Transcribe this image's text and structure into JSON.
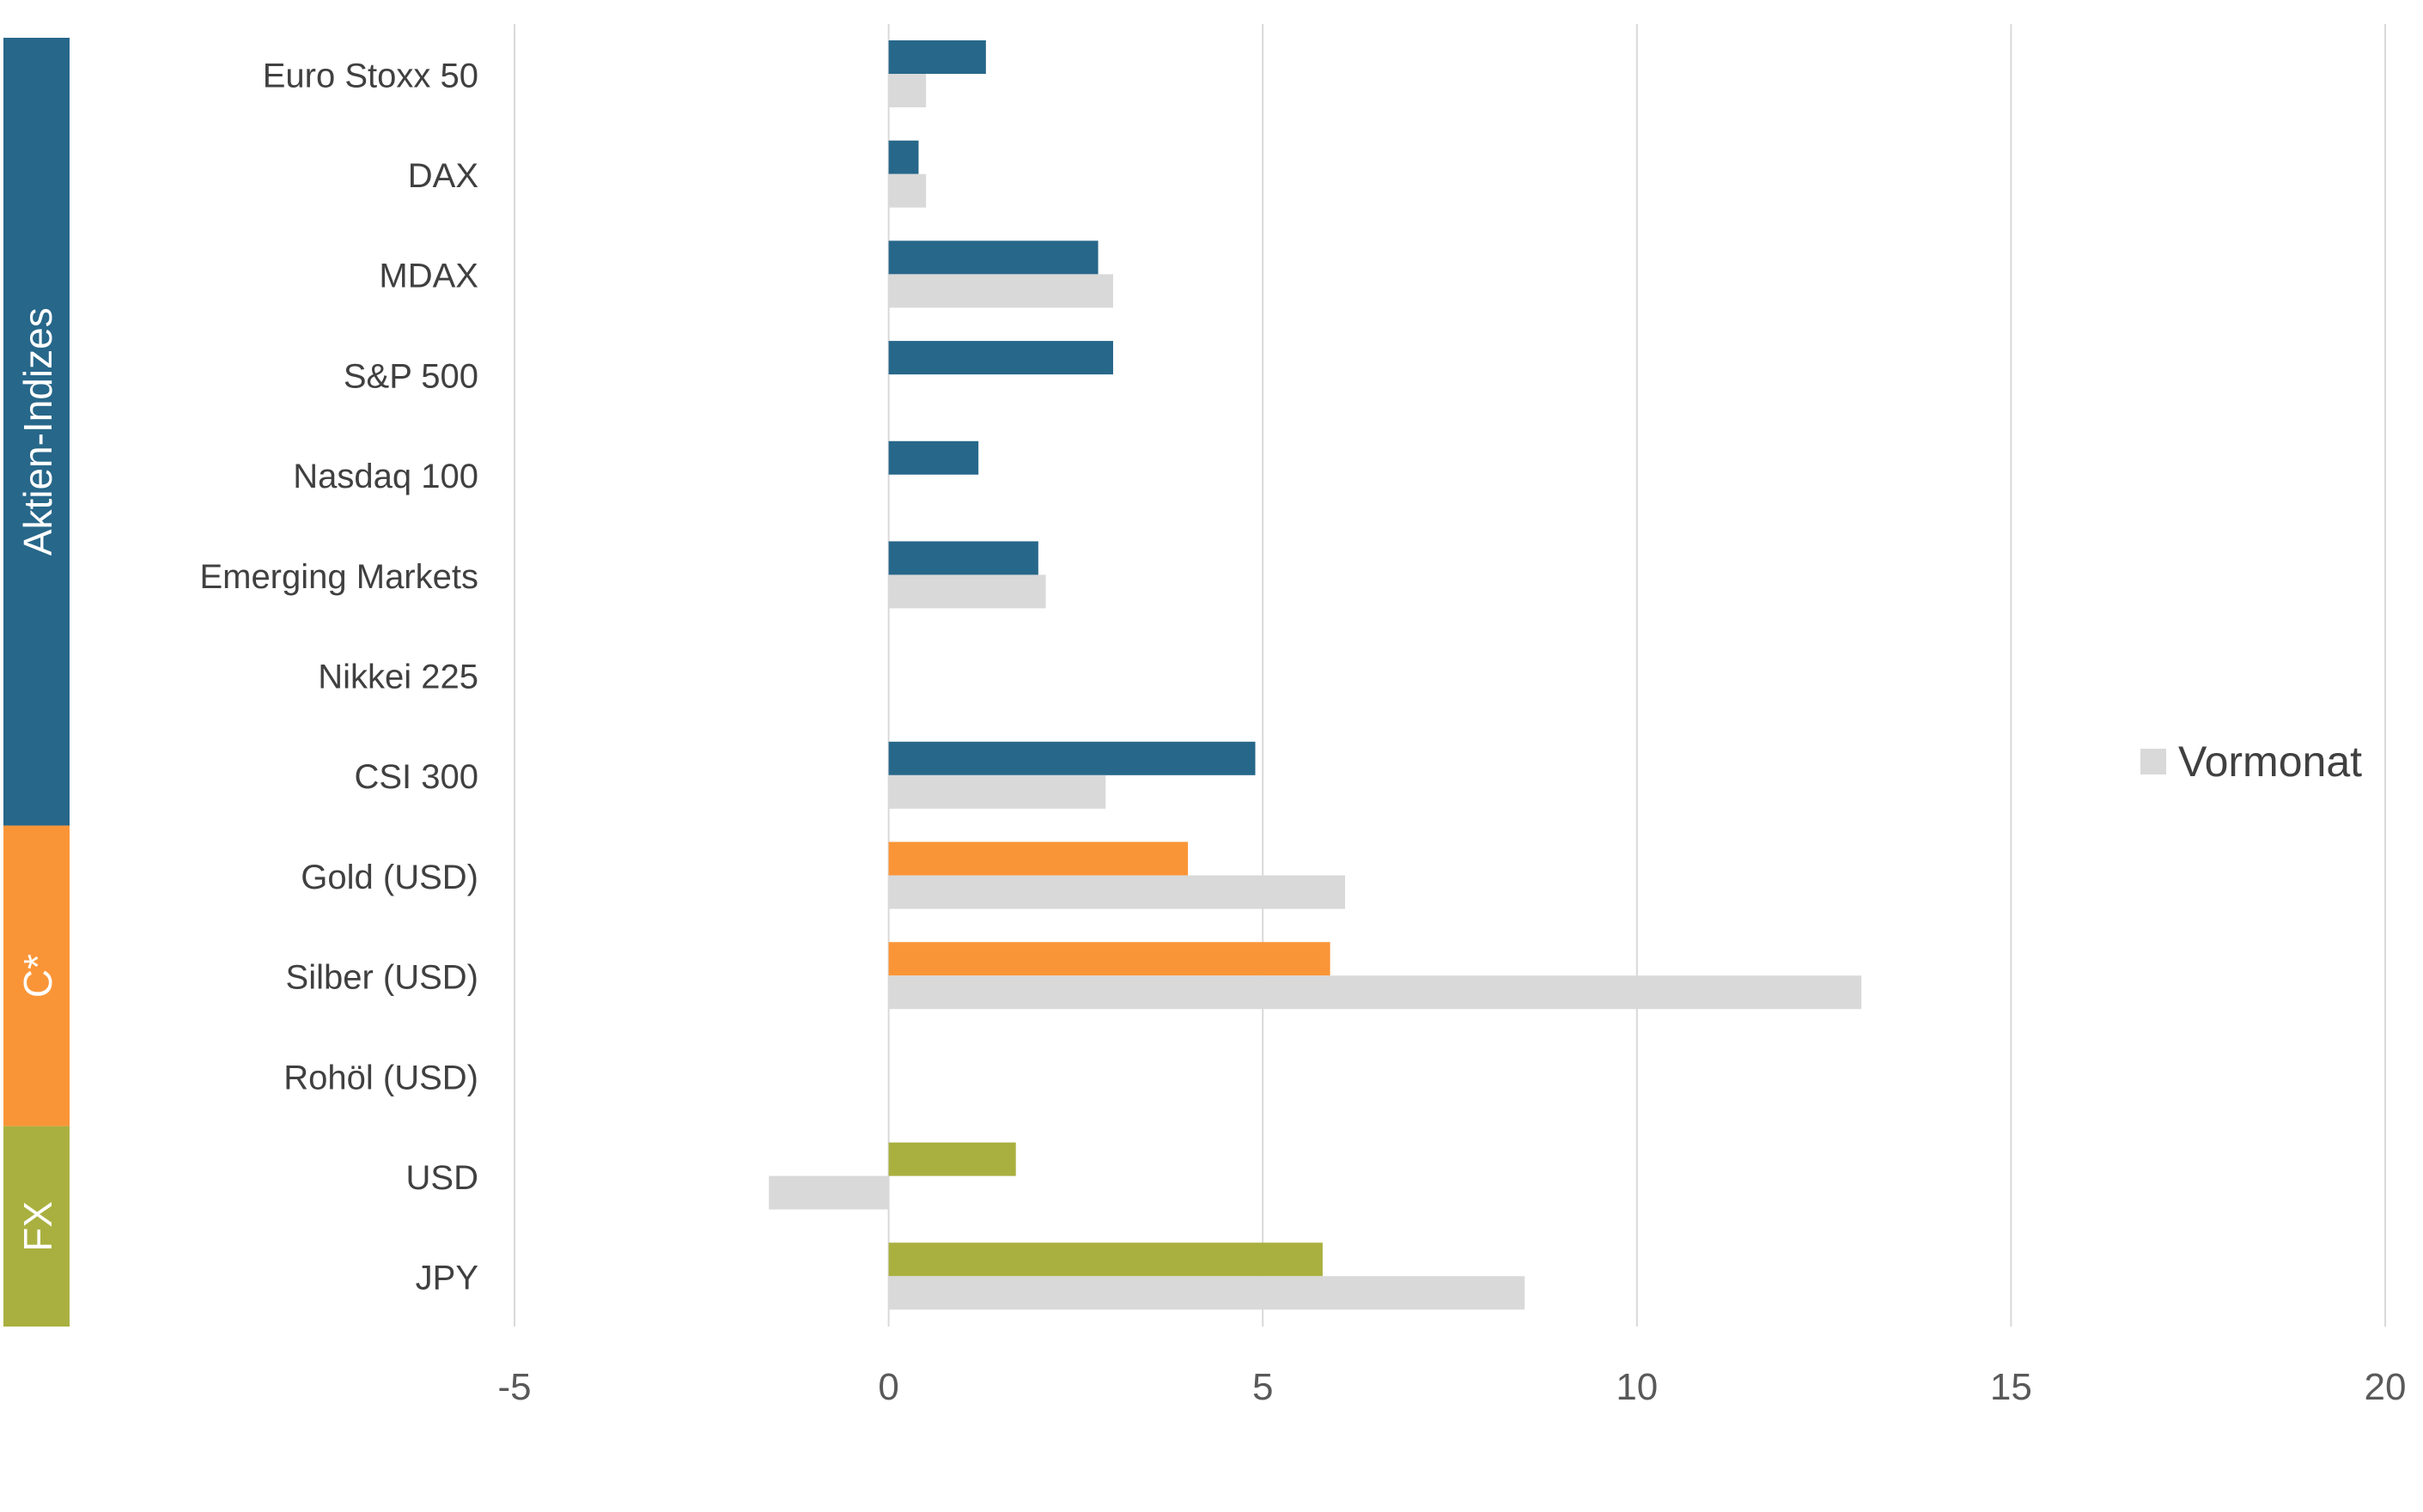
{
  "chart_data": {
    "type": "bar",
    "orientation": "horizontal",
    "categories": [
      "Euro Stoxx 50",
      "DAX",
      "MDAX",
      "S&P 500",
      "Nasdaq 100",
      "Emerging Markets",
      "Nikkei 225",
      "CSI 300",
      "Gold (USD)",
      "Silber (USD)",
      "Rohöl (USD)",
      "USD",
      "JPY"
    ],
    "groups": [
      {
        "label": "Aktien-Indizes",
        "from": 0,
        "to": 7,
        "color": "#27678a"
      },
      {
        "label": "C*",
        "from": 8,
        "to": 10,
        "color": "#fa9537"
      },
      {
        "label": "FX",
        "from": 11,
        "to": 12,
        "color": "#a9b03f"
      }
    ],
    "series": [
      {
        "values": [
          1.3,
          0.4,
          2.8,
          3.0,
          1.2,
          2.0,
          null,
          4.9,
          4.0,
          5.9,
          null,
          1.7,
          5.8
        ],
        "colors_by_group": [
          "#27678a",
          "#fa9537",
          "#a9b03f"
        ]
      },
      {
        "name": "Vormonat",
        "values": [
          0.5,
          0.5,
          3.0,
          null,
          null,
          2.1,
          null,
          2.9,
          6.1,
          13.0,
          null,
          -1.6,
          8.5
        ],
        "color": "#d9d9d9"
      }
    ],
    "xlim": [
      -5,
      20
    ],
    "xticks": [
      "-5",
      "0",
      "5",
      "10",
      "15",
      "20"
    ],
    "xtick_values": [
      -5,
      0,
      5,
      10,
      15,
      20
    ],
    "xlabel": "",
    "ylabel": "",
    "title": "",
    "grid": "vertical",
    "legend": {
      "position": "right",
      "entries": [
        "Vormonat"
      ]
    }
  }
}
